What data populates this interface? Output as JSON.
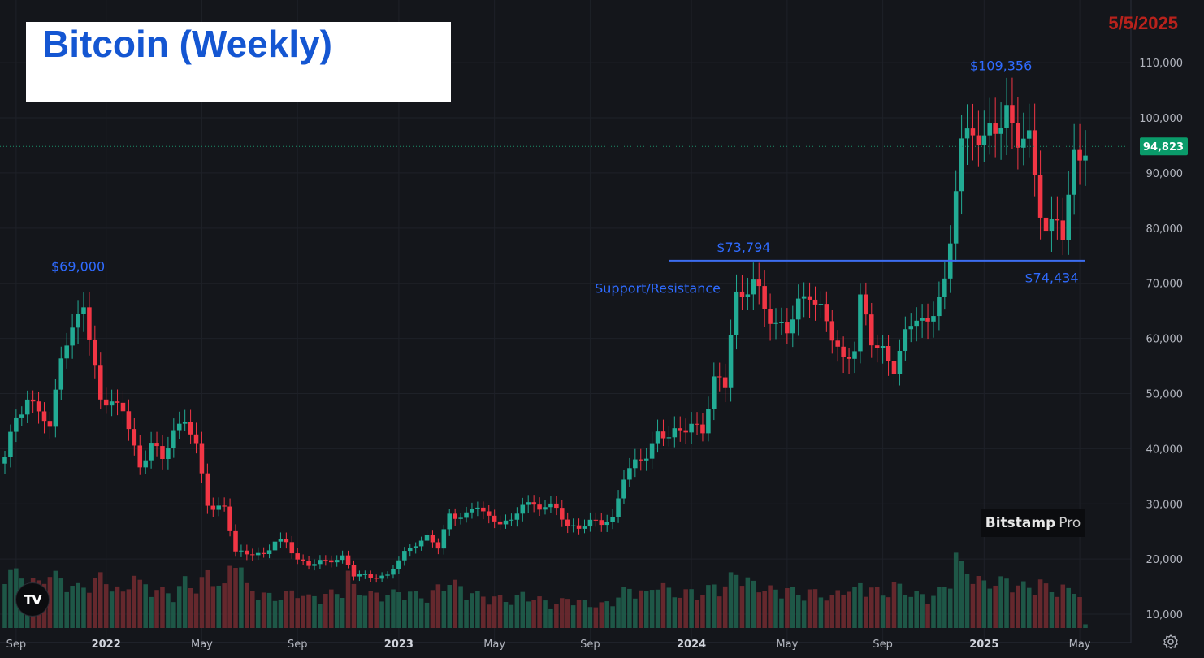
{
  "title": "Bitcoin (Weekly)",
  "date_stamp": "5/5/2025",
  "brand": {
    "name": "Bitstamp",
    "suffix": "Pro"
  },
  "logo_icon": "tradingview-logo-icon",
  "settings_icon": "gear-icon",
  "colors": {
    "background": "#14161b",
    "up": "#22ab94",
    "down": "#f23645",
    "annotation": "#2f6bff",
    "price_badge": "#0a9b6a",
    "grid": "#1e2128",
    "axis_text": "#b2b5be"
  },
  "chart_data": {
    "type": "candlestick",
    "title": "Bitcoin (Weekly)",
    "ylim": [
      5000,
      114000
    ],
    "yticks": [
      10000,
      20000,
      30000,
      40000,
      50000,
      60000,
      70000,
      80000,
      90000,
      100000,
      110000
    ],
    "ytick_labels": [
      "10,000",
      "20,000",
      "30,000",
      "40,000",
      "50,000",
      "60,000",
      "70,000",
      "80,000",
      "90,000",
      "100,000",
      "110,000"
    ],
    "xtick_labels": [
      {
        "label": "Sep",
        "week": 2
      },
      {
        "label": "2022",
        "week": 18
      },
      {
        "label": "May",
        "week": 35
      },
      {
        "label": "Sep",
        "week": 52
      },
      {
        "label": "2023",
        "week": 70
      },
      {
        "label": "May",
        "week": 87
      },
      {
        "label": "Sep",
        "week": 104
      },
      {
        "label": "2024",
        "week": 122
      },
      {
        "label": "May",
        "week": 139
      },
      {
        "label": "Sep",
        "week": 156
      },
      {
        "label": "2025",
        "week": 174
      },
      {
        "label": "May",
        "week": 191
      }
    ],
    "last_price": 94823,
    "last_price_label": "94,823",
    "annotations": [
      {
        "text": "$69,000",
        "week": 13,
        "value": 69000
      },
      {
        "text": "$73,794",
        "week": 132,
        "value": 73794
      },
      {
        "text": "Support/Resistance",
        "week": 116,
        "value": 70000
      },
      {
        "text": "$109,356",
        "week": 177,
        "value": 109356
      },
      {
        "text": "$74,434",
        "week": 186,
        "value": 74434
      }
    ],
    "support_resistance": {
      "value": 74100,
      "week_start": 118,
      "week_end": 192
    },
    "weeks": 193,
    "anchors": [
      [
        0,
        38000,
        18
      ],
      [
        2,
        46000,
        16
      ],
      [
        4,
        49000,
        15
      ],
      [
        6,
        47000,
        13
      ],
      [
        8,
        43000,
        17
      ],
      [
        10,
        58000,
        14
      ],
      [
        12,
        61000,
        13
      ],
      [
        13,
        64000,
        12
      ],
      [
        14,
        66000,
        12
      ],
      [
        15,
        59000,
        14
      ],
      [
        17,
        50000,
        15
      ],
      [
        19,
        48000,
        13
      ],
      [
        21,
        47000,
        10
      ],
      [
        23,
        40000,
        17
      ],
      [
        24,
        37000,
        13
      ],
      [
        26,
        41000,
        12
      ],
      [
        28,
        38000,
        11
      ],
      [
        30,
        43000,
        10
      ],
      [
        32,
        46000,
        14
      ],
      [
        34,
        40000,
        12
      ],
      [
        36,
        30000,
        16
      ],
      [
        37,
        29000,
        15
      ],
      [
        39,
        30000,
        12
      ],
      [
        41,
        21000,
        24
      ],
      [
        43,
        21000,
        12
      ],
      [
        46,
        21000,
        10
      ],
      [
        48,
        23000,
        9
      ],
      [
        50,
        23000,
        10
      ],
      [
        52,
        20000,
        11
      ],
      [
        54,
        19000,
        9
      ],
      [
        57,
        19500,
        10
      ],
      [
        60,
        20500,
        11
      ],
      [
        61,
        19000,
        16
      ],
      [
        62,
        17000,
        12
      ],
      [
        65,
        16800,
        10
      ],
      [
        68,
        17000,
        10
      ],
      [
        71,
        21000,
        11
      ],
      [
        73,
        23000,
        10
      ],
      [
        75,
        24000,
        9
      ],
      [
        77,
        22000,
        12
      ],
      [
        79,
        28000,
        14
      ],
      [
        82,
        28000,
        11
      ],
      [
        84,
        29500,
        10
      ],
      [
        86,
        27500,
        9
      ],
      [
        88,
        27000,
        9
      ],
      [
        90,
        26500,
        8
      ],
      [
        92,
        30000,
        10
      ],
      [
        94,
        30000,
        9
      ],
      [
        96,
        29500,
        8
      ],
      [
        98,
        29000,
        7
      ],
      [
        100,
        26000,
        9
      ],
      [
        102,
        26000,
        8
      ],
      [
        104,
        26500,
        7
      ],
      [
        106,
        26500,
        7
      ],
      [
        108,
        27500,
        8
      ],
      [
        110,
        35000,
        11
      ],
      [
        112,
        37000,
        12
      ],
      [
        114,
        39000,
        10
      ],
      [
        116,
        43000,
        14
      ],
      [
        118,
        42000,
        11
      ],
      [
        120,
        43000,
        10
      ],
      [
        122,
        45000,
        11
      ],
      [
        124,
        43000,
        10
      ],
      [
        126,
        52000,
        13
      ],
      [
        128,
        52000,
        12
      ],
      [
        129,
        62000,
        15
      ],
      [
        130,
        68000,
        17
      ],
      [
        131,
        67000,
        15
      ],
      [
        133,
        70000,
        13
      ],
      [
        135,
        66000,
        12
      ],
      [
        137,
        63000,
        11
      ],
      [
        139,
        61000,
        12
      ],
      [
        141,
        66000,
        10
      ],
      [
        143,
        69000,
        11
      ],
      [
        145,
        65000,
        10
      ],
      [
        147,
        60000,
        9
      ],
      [
        149,
        56000,
        12
      ],
      [
        151,
        59000,
        11
      ],
      [
        152,
        67000,
        13
      ],
      [
        154,
        59000,
        12
      ],
      [
        156,
        58000,
        10
      ],
      [
        158,
        55000,
        13
      ],
      [
        160,
        60000,
        11
      ],
      [
        162,
        64000,
        10
      ],
      [
        164,
        63000,
        9
      ],
      [
        166,
        68000,
        11
      ],
      [
        167,
        69000,
        12
      ],
      [
        168,
        76000,
        16
      ],
      [
        169,
        88000,
        22
      ],
      [
        170,
        97000,
        18
      ],
      [
        172,
        98000,
        16
      ],
      [
        174,
        95000,
        13
      ],
      [
        176,
        98000,
        14
      ],
      [
        178,
        102000,
        14
      ],
      [
        180,
        96000,
        13
      ],
      [
        182,
        95000,
        12
      ],
      [
        184,
        84000,
        14
      ],
      [
        185,
        80000,
        12
      ],
      [
        187,
        82000,
        11
      ],
      [
        188,
        78000,
        12
      ],
      [
        189,
        84000,
        11
      ],
      [
        190,
        93000,
        12
      ],
      [
        191,
        94500,
        10
      ],
      [
        192,
        94823,
        1
      ]
    ]
  }
}
